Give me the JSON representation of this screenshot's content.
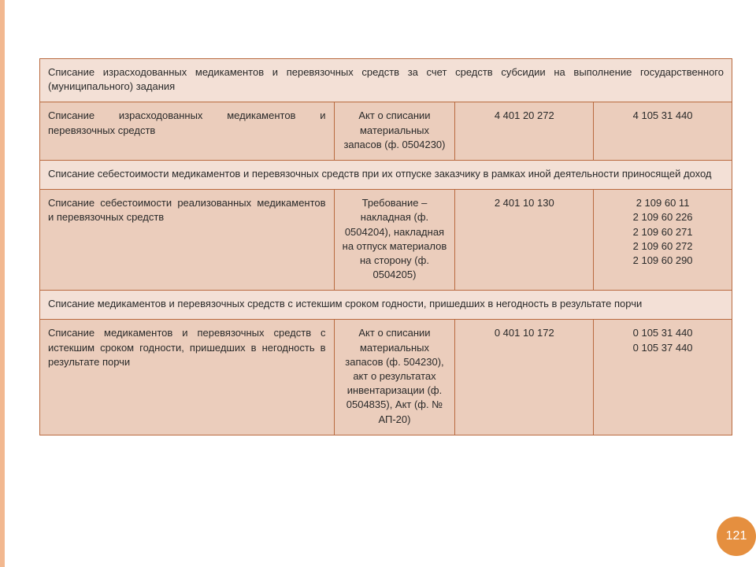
{
  "page_number": "121",
  "colors": {
    "left_bar": "#f2b890",
    "border": "#b96a3f",
    "header_bg": "#f3e0d6",
    "row_bg": "#ebcdbc",
    "badge_bg": "#e58f3f",
    "badge_text": "#ffffff",
    "text": "#2a2a2a"
  },
  "columns": {
    "widths_pct": [
      42.5,
      17.5,
      20,
      20
    ],
    "align": [
      "justify",
      "center",
      "center",
      "center"
    ]
  },
  "sections": [
    {
      "header": "Списание израсходованных медикаментов и перевязочных средств за счет средств субсидии на выполнение государственного (муниципального) задания",
      "row": {
        "desc": "Списание израсходованных медикаментов и перевязочных средств",
        "doc": "Акт о списании материальных запасов (ф. 0504230)",
        "num1": "4 401 20 272",
        "num2": "4 105 31 440"
      }
    },
    {
      "header": "Списание себестоимости медикаментов и перевязочных средств при их отпуске заказчику в рамках иной деятельности приносящей доход",
      "row": {
        "desc": "Списание себестоимости реализованных медикаментов и перевязочных средств",
        "doc": "Требование – накладная (ф. 0504204), накладная на отпуск материалов на сторону (ф. 0504205)",
        "num1": "2 401 10 130",
        "num2": "2 109 60 11\n2 109 60 226\n2 109 60 271\n2 109 60 272\n2 109 60 290"
      }
    },
    {
      "header": "Списание медикаментов и перевязочных средств с истекшим сроком годности, пришедших в негодность в результате порчи",
      "row": {
        "desc": "Списание медикаментов и перевязочных средств с истекшим сроком годности, пришедших в негодность в результате порчи",
        "doc": "Акт о списании материальных запасов (ф. 504230), акт о результатах инвентаризации (ф. 0504835), Акт (ф. № АП-20)",
        "num1": "0 401 10 172",
        "num2": "0 105 31 440\n0 105 37 440"
      }
    }
  ]
}
